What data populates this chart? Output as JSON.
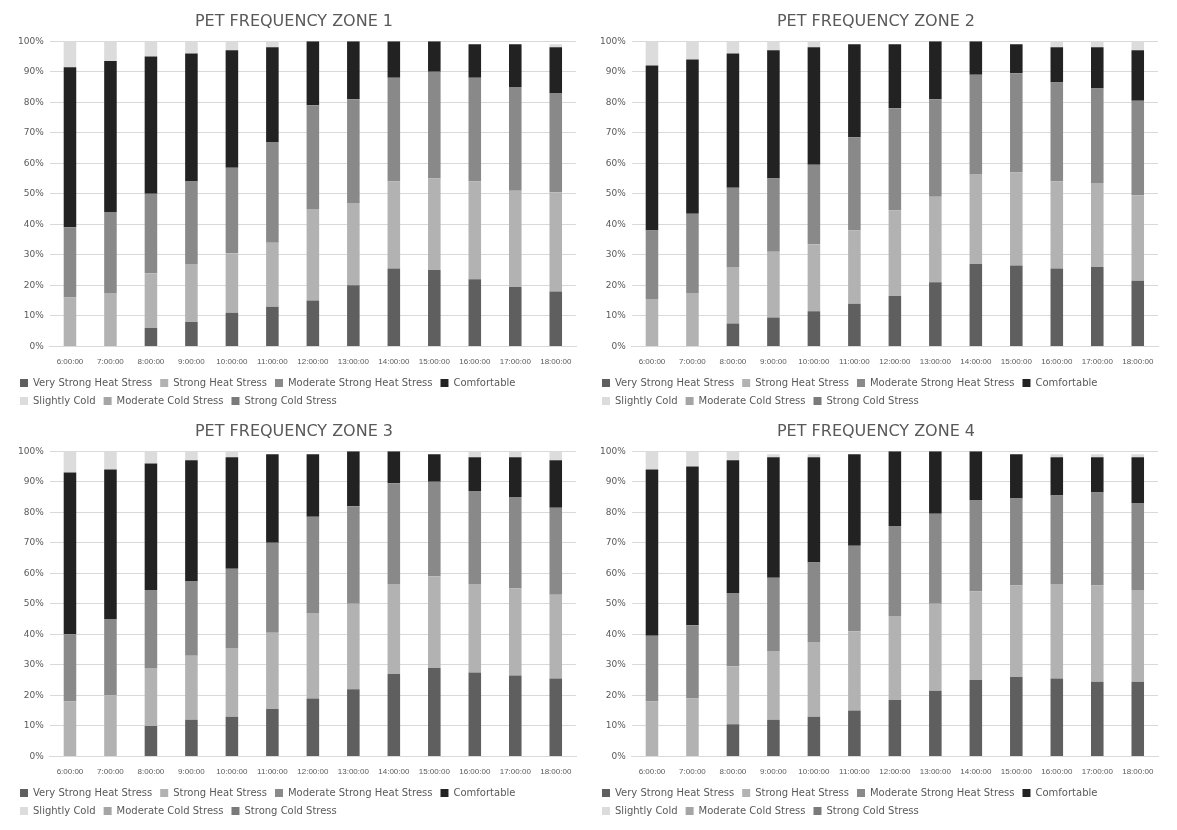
{
  "chart_data": [
    {
      "type": "bar",
      "title": "PET FREQUENCY ZONE 1",
      "stacked": true,
      "grid": "y",
      "legend": "bottom",
      "ylim": [
        0,
        100
      ],
      "yticks": [
        {
          "value": 0,
          "label": "0%"
        },
        {
          "value": 10,
          "label": "10%"
        },
        {
          "value": 20,
          "label": "20%"
        },
        {
          "value": 30,
          "label": "30%"
        },
        {
          "value": 40,
          "label": "40%"
        },
        {
          "value": 50,
          "label": "50%"
        },
        {
          "value": 60,
          "label": "60%"
        },
        {
          "value": 70,
          "label": "70%"
        },
        {
          "value": 80,
          "label": "80%"
        },
        {
          "value": 90,
          "label": "90%"
        },
        {
          "value": 100,
          "label": "100%"
        }
      ],
      "categories": [
        "6:00:00",
        "7:00:00",
        "8:00:00",
        "9:00:00",
        "10:00:00",
        "11:00:00",
        "12:00:00",
        "13:00:00",
        "14:00:00",
        "15:00:00",
        "16:00:00",
        "17:00:00",
        "18:00:00"
      ],
      "series": [
        {
          "name": "Very Strong Heat Stress",
          "color": "#5f5f5f",
          "values": [
            0,
            0,
            6,
            8,
            11,
            13,
            15,
            20,
            25.5,
            25,
            22,
            19.5,
            18
          ]
        },
        {
          "name": "Strong Heat Stress",
          "color": "#b2b2b2",
          "values": [
            16,
            17.5,
            18,
            19,
            19.5,
            21,
            30,
            27,
            28.5,
            30,
            32,
            31.5,
            32.5
          ]
        },
        {
          "name": "Moderate Strong Heat Stress",
          "color": "#898989",
          "values": [
            23,
            26.5,
            26,
            27,
            28,
            33,
            34,
            34,
            34,
            35,
            34,
            34,
            32.5
          ]
        },
        {
          "name": "Comfortable",
          "color": "#222222",
          "values": [
            52.5,
            49.5,
            45,
            42,
            38.5,
            31,
            21,
            19,
            12,
            10,
            11,
            14,
            15
          ]
        },
        {
          "name": "Slightly Cold",
          "color": "#dcdcdc",
          "values": [
            8.5,
            6.5,
            5,
            4,
            3,
            2,
            0,
            0,
            0,
            0,
            0,
            0,
            1
          ]
        },
        {
          "name": "Moderate Cold Stress",
          "color": "#a5a5a5",
          "values": [
            0,
            0,
            0,
            0,
            0,
            0,
            0,
            0,
            0,
            0,
            0,
            0,
            0
          ]
        },
        {
          "name": "Strong Cold Stress",
          "color": "#7a7a7a",
          "values": [
            0,
            0,
            0,
            0,
            0,
            0,
            0,
            0,
            0,
            0,
            0,
            0,
            0
          ]
        }
      ]
    },
    {
      "type": "bar",
      "title": "PET FREQUENCY ZONE 2",
      "stacked": true,
      "grid": "y",
      "legend": "bottom",
      "ylim": [
        0,
        100
      ],
      "yticks": [
        {
          "value": 0,
          "label": "0%"
        },
        {
          "value": 10,
          "label": "10%"
        },
        {
          "value": 20,
          "label": "20%"
        },
        {
          "value": 30,
          "label": "30%"
        },
        {
          "value": 40,
          "label": "40%"
        },
        {
          "value": 50,
          "label": "50%"
        },
        {
          "value": 60,
          "label": "60%"
        },
        {
          "value": 70,
          "label": "70%"
        },
        {
          "value": 80,
          "label": "80%"
        },
        {
          "value": 90,
          "label": "90%"
        },
        {
          "value": 100,
          "label": "100%"
        }
      ],
      "categories": [
        "6:00:00",
        "7:00:00",
        "8:00:00",
        "9:00:00",
        "10:00:00",
        "11:00:00",
        "12:00:00",
        "13:00:00",
        "14:00:00",
        "15:00:00",
        "16:00:00",
        "17:00:00",
        "18:00:00"
      ],
      "series": [
        {
          "name": "Very Strong Heat Stress",
          "color": "#5f5f5f",
          "values": [
            0,
            0,
            7.5,
            9.5,
            11.5,
            14,
            16.5,
            21,
            27,
            26.5,
            25.5,
            26,
            21.5
          ]
        },
        {
          "name": "Strong Heat Stress",
          "color": "#b2b2b2",
          "values": [
            15.5,
            17.5,
            18.5,
            21.5,
            22,
            24,
            28,
            28,
            29.5,
            30.5,
            28.5,
            27.5,
            28
          ]
        },
        {
          "name": "Moderate Strong Heat Stress",
          "color": "#898989",
          "values": [
            22.5,
            26,
            26,
            24,
            26,
            30.5,
            33.5,
            32,
            32.5,
            32.5,
            32.5,
            31,
            31
          ]
        },
        {
          "name": "Comfortable",
          "color": "#222222",
          "values": [
            54,
            50.5,
            44,
            42,
            38.5,
            30.5,
            21,
            19,
            11,
            9.5,
            11.5,
            13.5,
            16.5
          ]
        },
        {
          "name": "Slightly Cold",
          "color": "#dcdcdc",
          "values": [
            8,
            6,
            4,
            3,
            2,
            0,
            0,
            0,
            0,
            0,
            2,
            2,
            3
          ]
        },
        {
          "name": "Moderate Cold Stress",
          "color": "#a5a5a5",
          "values": [
            0,
            0,
            0,
            0,
            0,
            0,
            0,
            0,
            0,
            0,
            0,
            0,
            0
          ]
        },
        {
          "name": "Strong Cold Stress",
          "color": "#7a7a7a",
          "values": [
            0,
            0,
            0,
            0,
            0,
            0,
            0,
            0,
            0,
            0,
            0,
            0,
            0
          ]
        }
      ]
    },
    {
      "type": "bar",
      "title": "PET FREQUENCY ZONE 3",
      "stacked": true,
      "grid": "y",
      "legend": "bottom",
      "ylim": [
        0,
        100
      ],
      "yticks": [
        {
          "value": 0,
          "label": "0%"
        },
        {
          "value": 10,
          "label": "10%"
        },
        {
          "value": 20,
          "label": "20%"
        },
        {
          "value": 30,
          "label": "30%"
        },
        {
          "value": 40,
          "label": "40%"
        },
        {
          "value": 50,
          "label": "50%"
        },
        {
          "value": 60,
          "label": "60%"
        },
        {
          "value": 70,
          "label": "70%"
        },
        {
          "value": 80,
          "label": "80%"
        },
        {
          "value": 90,
          "label": "90%"
        },
        {
          "value": 100,
          "label": "100%"
        }
      ],
      "categories": [
        "6:00:00",
        "7:00:00",
        "8:00:00",
        "9:00:00",
        "10:00:00",
        "11:00:00",
        "12:00:00",
        "13:00:00",
        "14:00:00",
        "15:00:00",
        "16:00:00",
        "17:00:00",
        "18:00:00"
      ],
      "series": [
        {
          "name": "Very Strong Heat Stress",
          "color": "#5f5f5f",
          "values": [
            0,
            0,
            10,
            12,
            13,
            15.5,
            19,
            22,
            27,
            29,
            27.5,
            26.5,
            25.5
          ]
        },
        {
          "name": "Strong Heat Stress",
          "color": "#b2b2b2",
          "values": [
            18,
            20,
            19,
            21,
            22.5,
            25,
            28,
            28,
            29.5,
            30,
            29,
            28.5,
            27.5
          ]
        },
        {
          "name": "Moderate Strong Heat Stress",
          "color": "#898989",
          "values": [
            22,
            25,
            25.5,
            24.5,
            26,
            29.5,
            31.5,
            32,
            33,
            31,
            30.5,
            30,
            28.5
          ]
        },
        {
          "name": "Comfortable",
          "color": "#222222",
          "values": [
            53,
            49,
            41.5,
            39.5,
            36.5,
            29,
            20.5,
            18,
            10.5,
            9,
            11,
            13,
            15.5
          ]
        },
        {
          "name": "Slightly Cold",
          "color": "#dcdcdc",
          "values": [
            7,
            6,
            4,
            3,
            2,
            0,
            0,
            0,
            0,
            0,
            2,
            2,
            3
          ]
        },
        {
          "name": "Moderate Cold Stress",
          "color": "#a5a5a5",
          "values": [
            0,
            0,
            0,
            0,
            0,
            0,
            0,
            0,
            0,
            0,
            0,
            0,
            0
          ]
        },
        {
          "name": "Strong Cold Stress",
          "color": "#7a7a7a",
          "values": [
            0,
            0,
            0,
            0,
            0,
            0,
            0,
            0,
            0,
            0,
            0,
            0,
            0
          ]
        }
      ]
    },
    {
      "type": "bar",
      "title": "PET FREQUENCY ZONE 4",
      "stacked": true,
      "grid": "y",
      "legend": "bottom",
      "ylim": [
        0,
        100
      ],
      "yticks": [
        {
          "value": 0,
          "label": "0%"
        },
        {
          "value": 10,
          "label": "10%"
        },
        {
          "value": 20,
          "label": "20%"
        },
        {
          "value": 30,
          "label": "30%"
        },
        {
          "value": 40,
          "label": "40%"
        },
        {
          "value": 50,
          "label": "50%"
        },
        {
          "value": 60,
          "label": "60%"
        },
        {
          "value": 70,
          "label": "70%"
        },
        {
          "value": 80,
          "label": "80%"
        },
        {
          "value": 90,
          "label": "90%"
        },
        {
          "value": 100,
          "label": "100%"
        }
      ],
      "categories": [
        "6:00:00",
        "7:00:00",
        "8:00:00",
        "9:00:00",
        "10:00:00",
        "11:00:00",
        "12:00:00",
        "13:00:00",
        "14:00:00",
        "15:00:00",
        "16:00:00",
        "17:00:00",
        "18:00:00"
      ],
      "series": [
        {
          "name": "Very Strong Heat Stress",
          "color": "#5f5f5f",
          "values": [
            0,
            0,
            10.5,
            12,
            13,
            15,
            18.5,
            21.5,
            25,
            26,
            25.5,
            24.5,
            24.5
          ]
        },
        {
          "name": "Strong Heat Stress",
          "color": "#b2b2b2",
          "values": [
            18,
            19,
            19,
            22.5,
            24.5,
            26,
            27.5,
            28.5,
            29,
            30,
            31,
            31.5,
            30
          ]
        },
        {
          "name": "Moderate Strong Heat Stress",
          "color": "#898989",
          "values": [
            21.5,
            24,
            24,
            24,
            26,
            28,
            29.5,
            29.5,
            30,
            28.5,
            29,
            30.5,
            28.5
          ]
        },
        {
          "name": "Comfortable",
          "color": "#222222",
          "values": [
            54.5,
            52,
            43.5,
            39.5,
            34.5,
            30,
            24.5,
            20.5,
            16,
            14.5,
            12.5,
            11.5,
            15
          ]
        },
        {
          "name": "Slightly Cold",
          "color": "#dcdcdc",
          "values": [
            6,
            5,
            3,
            1,
            1,
            0,
            0,
            0,
            0,
            0,
            1,
            1,
            1
          ]
        },
        {
          "name": "Moderate Cold Stress",
          "color": "#a5a5a5",
          "values": [
            0,
            0,
            0,
            0,
            0,
            0,
            0,
            0,
            0,
            0,
            0,
            0,
            0
          ]
        },
        {
          "name": "Strong Cold Stress",
          "color": "#7a7a7a",
          "values": [
            0,
            0,
            0,
            0,
            0,
            0,
            0,
            0,
            0,
            0,
            0,
            0,
            0
          ]
        }
      ]
    }
  ]
}
